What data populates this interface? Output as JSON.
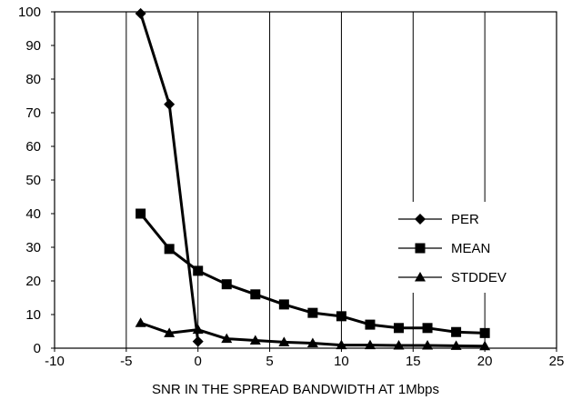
{
  "chart_data": {
    "type": "line",
    "title": "",
    "xlabel": "SNR IN THE SPREAD BANDWIDTH AT 1Mbps",
    "ylabel": "",
    "xlim": [
      -10,
      25
    ],
    "ylim": [
      0,
      100
    ],
    "xticks": [
      -10,
      -5,
      0,
      5,
      10,
      15,
      20,
      25
    ],
    "yticks": [
      0,
      10,
      20,
      30,
      40,
      50,
      60,
      70,
      80,
      90,
      100
    ],
    "grid": "vertical",
    "legend": "right",
    "series": [
      {
        "name": "PER",
        "marker": "diamond",
        "x": [
          -4,
          -2,
          0
        ],
        "y": [
          99.5,
          72.5,
          2
        ]
      },
      {
        "name": "MEAN",
        "marker": "square",
        "x": [
          -4,
          -2,
          0,
          2,
          4,
          6,
          8,
          10,
          12,
          14,
          16,
          18,
          20
        ],
        "y": [
          40,
          29.5,
          23,
          19,
          16,
          13,
          10.5,
          9.5,
          7,
          6,
          6,
          4.8,
          4.5
        ]
      },
      {
        "name": "STDDEV",
        "marker": "triangle",
        "x": [
          -4,
          -2,
          0,
          2,
          4,
          6,
          8,
          10,
          12,
          14,
          16,
          18,
          20
        ],
        "y": [
          7.5,
          4.5,
          5.5,
          2.8,
          2.3,
          1.8,
          1.5,
          0.9,
          0.9,
          0.8,
          0.8,
          0.7,
          0.6
        ]
      }
    ]
  }
}
